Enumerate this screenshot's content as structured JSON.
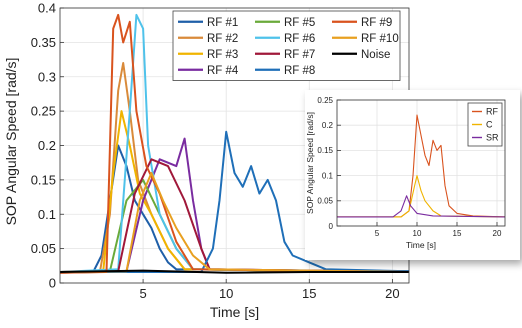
{
  "chart_data": [
    {
      "type": "line",
      "xlabel": "Time [s]",
      "ylabel": "SOP Angular Speed [rad/s]",
      "xlim": [
        0,
        21
      ],
      "ylim": [
        0,
        0.4
      ],
      "xticks": [
        5,
        10,
        15,
        20
      ],
      "yticks": [
        0,
        0.05,
        0.1,
        0.15,
        0.2,
        0.25,
        0.3,
        0.35,
        0.4
      ],
      "ytick_labels": [
        "0",
        "0.05",
        "0.1",
        "0.15",
        "0.2",
        "0.25",
        "0.3",
        "0.35",
        "0.4"
      ],
      "xtick_labels": [
        "5",
        "10",
        "15",
        "20"
      ],
      "grid": true,
      "legend_position": "top-right",
      "legend_columns": 3,
      "series": [
        {
          "name": "RF #1",
          "color": "#1f5fa8",
          "points": [
            [
              0,
              0.015
            ],
            [
              2,
              0.016
            ],
            [
              2.5,
              0.04
            ],
            [
              3,
              0.12
            ],
            [
              3.5,
              0.2
            ],
            [
              4,
              0.17
            ],
            [
              4.5,
              0.12
            ],
            [
              5,
              0.1
            ],
            [
              5.5,
              0.08
            ],
            [
              6,
              0.05
            ],
            [
              6.5,
              0.03
            ],
            [
              7,
              0.02
            ],
            [
              21,
              0.017
            ]
          ]
        },
        {
          "name": "RF #2",
          "color": "#d98a3a",
          "points": [
            [
              0,
              0.015
            ],
            [
              2.4,
              0.016
            ],
            [
              3,
              0.1
            ],
            [
              3.5,
              0.28
            ],
            [
              3.8,
              0.32
            ],
            [
              4.2,
              0.25
            ],
            [
              4.7,
              0.15
            ],
            [
              5.5,
              0.1
            ],
            [
              6.5,
              0.05
            ],
            [
              7.5,
              0.02
            ],
            [
              21,
              0.016
            ]
          ]
        },
        {
          "name": "RF #3",
          "color": "#f0b400",
          "points": [
            [
              0,
              0.016
            ],
            [
              2.6,
              0.017
            ],
            [
              3.2,
              0.16
            ],
            [
              3.7,
              0.25
            ],
            [
              4.2,
              0.2
            ],
            [
              4.8,
              0.13
            ],
            [
              5.5,
              0.1
            ],
            [
              6.5,
              0.05
            ],
            [
              7.5,
              0.02
            ],
            [
              21,
              0.016
            ]
          ]
        },
        {
          "name": "RF #4",
          "color": "#7a2ca0",
          "points": [
            [
              0,
              0.016
            ],
            [
              4,
              0.017
            ],
            [
              5,
              0.12
            ],
            [
              6,
              0.18
            ],
            [
              7,
              0.17
            ],
            [
              7.5,
              0.21
            ],
            [
              8,
              0.12
            ],
            [
              8.5,
              0.05
            ],
            [
              9,
              0.02
            ],
            [
              21,
              0.016
            ]
          ]
        },
        {
          "name": "RF #5",
          "color": "#6aaa3a",
          "points": [
            [
              0,
              0.016
            ],
            [
              3,
              0.017
            ],
            [
              4,
              0.12
            ],
            [
              5,
              0.15
            ],
            [
              6,
              0.1
            ],
            [
              7,
              0.05
            ],
            [
              8,
              0.02
            ],
            [
              21,
              0.016
            ]
          ]
        },
        {
          "name": "RF #6",
          "color": "#4fc2ea",
          "points": [
            [
              0,
              0.016
            ],
            [
              3.5,
              0.02
            ],
            [
              4.2,
              0.25
            ],
            [
              4.6,
              0.39
            ],
            [
              5,
              0.37
            ],
            [
              5.3,
              0.2
            ],
            [
              6,
              0.1
            ],
            [
              7,
              0.05
            ],
            [
              8,
              0.02
            ],
            [
              21,
              0.016
            ]
          ]
        },
        {
          "name": "RF #7",
          "color": "#a0183a",
          "points": [
            [
              0,
              0.016
            ],
            [
              3.5,
              0.017
            ],
            [
              4.5,
              0.13
            ],
            [
              5.5,
              0.18
            ],
            [
              6.5,
              0.17
            ],
            [
              7.5,
              0.12
            ],
            [
              8.5,
              0.05
            ],
            [
              9,
              0.02
            ],
            [
              21,
              0.016
            ]
          ]
        },
        {
          "name": "RF #8",
          "color": "#1f6fb8",
          "points": [
            [
              0,
              0.016
            ],
            [
              8.5,
              0.016
            ],
            [
              9.2,
              0.05
            ],
            [
              9.6,
              0.12
            ],
            [
              10,
              0.22
            ],
            [
              10.5,
              0.16
            ],
            [
              11,
              0.14
            ],
            [
              11.5,
              0.17
            ],
            [
              12,
              0.13
            ],
            [
              12.5,
              0.15
            ],
            [
              13,
              0.12
            ],
            [
              13.5,
              0.06
            ],
            [
              14,
              0.04
            ],
            [
              15,
              0.03
            ],
            [
              16,
              0.02
            ],
            [
              21,
              0.017
            ]
          ]
        },
        {
          "name": "RF #9",
          "color": "#d9531e",
          "points": [
            [
              0,
              0.015
            ],
            [
              2.8,
              0.016
            ],
            [
              3.2,
              0.37
            ],
            [
              3.5,
              0.39
            ],
            [
              3.8,
              0.35
            ],
            [
              4.2,
              0.38
            ],
            [
              4.6,
              0.25
            ],
            [
              5.2,
              0.17
            ],
            [
              6,
              0.13
            ],
            [
              7,
              0.06
            ],
            [
              8,
              0.02
            ],
            [
              21,
              0.016
            ]
          ]
        },
        {
          "name": "RF #10",
          "color": "#e8a020",
          "points": [
            [
              0,
              0.016
            ],
            [
              4,
              0.017
            ],
            [
              4.8,
              0.12
            ],
            [
              5.5,
              0.16
            ],
            [
              6.2,
              0.12
            ],
            [
              7,
              0.08
            ],
            [
              8,
              0.04
            ],
            [
              9,
              0.02
            ],
            [
              21,
              0.016
            ]
          ]
        },
        {
          "name": "Noise",
          "color": "#000000",
          "points": [
            [
              0,
              0.016
            ],
            [
              5,
              0.018
            ],
            [
              10,
              0.015
            ],
            [
              15,
              0.016
            ],
            [
              21,
              0.016
            ]
          ]
        }
      ]
    },
    {
      "type": "line",
      "xlabel": "Time [s]",
      "ylabel": "SOP Angular Speed [rad/s]",
      "xlim": [
        0,
        21
      ],
      "ylim": [
        0,
        0.25
      ],
      "xticks": [
        5,
        10,
        15,
        20
      ],
      "yticks": [
        0,
        0.05,
        0.1,
        0.15,
        0.2,
        0.25
      ],
      "ytick_labels": [
        "0",
        "0.05",
        "0.1",
        "0.15",
        "0.2",
        "0.25"
      ],
      "xtick_labels": [
        "5",
        "10",
        "15",
        "20"
      ],
      "grid": true,
      "legend_position": "top-right",
      "series": [
        {
          "name": "RF",
          "color": "#d9531e",
          "points": [
            [
              0,
              0.018
            ],
            [
              8,
              0.018
            ],
            [
              9,
              0.03
            ],
            [
              9.5,
              0.1
            ],
            [
              10,
              0.22
            ],
            [
              10.5,
              0.18
            ],
            [
              11,
              0.14
            ],
            [
              11.5,
              0.12
            ],
            [
              12,
              0.17
            ],
            [
              12.5,
              0.15
            ],
            [
              13,
              0.16
            ],
            [
              13.5,
              0.08
            ],
            [
              14,
              0.04
            ],
            [
              15,
              0.025
            ],
            [
              17,
              0.02
            ],
            [
              21,
              0.018
            ]
          ]
        },
        {
          "name": "C",
          "color": "#f0b400",
          "points": [
            [
              0,
              0.018
            ],
            [
              8,
              0.018
            ],
            [
              9,
              0.03
            ],
            [
              9.7,
              0.08
            ],
            [
              10,
              0.1
            ],
            [
              10.5,
              0.07
            ],
            [
              11,
              0.05
            ],
            [
              12,
              0.03
            ],
            [
              13,
              0.02
            ],
            [
              21,
              0.018
            ]
          ]
        },
        {
          "name": "SR",
          "color": "#7a2ca0",
          "points": [
            [
              0,
              0.018
            ],
            [
              7,
              0.018
            ],
            [
              8,
              0.03
            ],
            [
              8.7,
              0.06
            ],
            [
              9.2,
              0.04
            ],
            [
              10,
              0.025
            ],
            [
              12,
              0.02
            ],
            [
              21,
              0.018
            ]
          ]
        }
      ]
    }
  ]
}
